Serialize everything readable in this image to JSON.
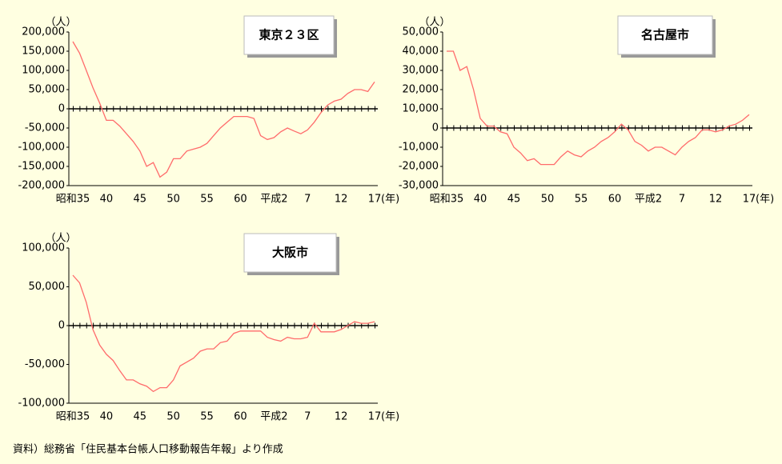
{
  "chart_data": [
    {
      "type": "line",
      "title": "東京２３区",
      "y_label": "（人）",
      "x_label": "(年)",
      "categories": [
        "昭和35",
        null,
        null,
        null,
        null,
        "40",
        null,
        null,
        null,
        null,
        "45",
        null,
        null,
        null,
        null,
        "50",
        null,
        null,
        null,
        null,
        "55",
        null,
        null,
        null,
        null,
        "60",
        null,
        null,
        null,
        null,
        "平成2",
        null,
        null,
        null,
        null,
        "7",
        null,
        null,
        null,
        null,
        "12",
        null,
        null,
        null,
        null,
        "17"
      ],
      "series": [
        {
          "color": "#ff6b6b",
          "values": [
            175000,
            145000,
            100000,
            55000,
            15000,
            -30000,
            -30000,
            -45000,
            -65000,
            -85000,
            -110000,
            -150000,
            -140000,
            -178000,
            -165000,
            -130000,
            -130000,
            -110000,
            -105000,
            -100000,
            -90000,
            -70000,
            -50000,
            -35000,
            -20000,
            -20000,
            -20000,
            -25000,
            -70000,
            -80000,
            -75000,
            -60000,
            -50000,
            -58000,
            -65000,
            -55000,
            -35000,
            -10000,
            10000,
            20000,
            25000,
            40000,
            50000,
            50000,
            45000,
            70000
          ]
        }
      ],
      "ylim": [
        -200000,
        200000
      ],
      "yticks": [
        {
          "value": -200000,
          "label": "-200,000"
        },
        {
          "value": -150000,
          "label": "-150,000"
        },
        {
          "value": -100000,
          "label": "-100,000"
        },
        {
          "value": -50000,
          "label": "-50,000"
        },
        0,
        {
          "value": 50000,
          "label": "50,000"
        },
        {
          "value": 100000,
          "label": "100,000"
        },
        {
          "value": 150000,
          "label": "150,000"
        },
        {
          "value": 200000,
          "label": "200,000"
        }
      ]
    },
    {
      "type": "line",
      "title": "名古屋市",
      "y_label": "（人）",
      "x_label": "(年)",
      "categories": [
        "昭和35",
        null,
        null,
        null,
        null,
        "40",
        null,
        null,
        null,
        null,
        "45",
        null,
        null,
        null,
        null,
        "50",
        null,
        null,
        null,
        null,
        "55",
        null,
        null,
        null,
        null,
        "60",
        null,
        null,
        null,
        null,
        "平成2",
        null,
        null,
        null,
        null,
        "7",
        null,
        null,
        null,
        null,
        "12",
        null,
        null,
        null,
        null,
        "17"
      ],
      "series": [
        {
          "color": "#ff6b6b",
          "values": [
            40000,
            40000,
            30000,
            32000,
            20000,
            5000,
            1000,
            1000,
            -2000,
            -3000,
            -10000,
            -13000,
            -17000,
            -16000,
            -19000,
            -19000,
            -19000,
            -15000,
            -12000,
            -14000,
            -15000,
            -12000,
            -10000,
            -7000,
            -5000,
            -2000,
            2000,
            -1000,
            -7000,
            -9000,
            -12000,
            -10000,
            -10000,
            -12000,
            -14000,
            -10000,
            -7000,
            -5000,
            -1000,
            -1000,
            -2000,
            -1000,
            1000,
            2000,
            4000,
            7000
          ]
        }
      ],
      "ylim": [
        -30000,
        50000
      ],
      "yticks": [
        {
          "value": -30000,
          "label": "-30,000"
        },
        {
          "value": -20000,
          "label": "-20,000"
        },
        {
          "value": -10000,
          "label": "-10,000"
        },
        0,
        {
          "value": 10000,
          "label": "10,000"
        },
        {
          "value": 20000,
          "label": "20,000"
        },
        {
          "value": 30000,
          "label": "30,000"
        },
        {
          "value": 40000,
          "label": "40,000"
        },
        {
          "value": 50000,
          "label": "50,000"
        }
      ]
    },
    {
      "type": "line",
      "title": "大阪市",
      "y_label": "（人）",
      "x_label": "(年)",
      "categories": [
        "昭和35",
        null,
        null,
        null,
        null,
        "40",
        null,
        null,
        null,
        null,
        "45",
        null,
        null,
        null,
        null,
        "50",
        null,
        null,
        null,
        null,
        "55",
        null,
        null,
        null,
        null,
        "60",
        null,
        null,
        null,
        null,
        "平成2",
        null,
        null,
        null,
        null,
        "7",
        null,
        null,
        null,
        null,
        "12",
        null,
        null,
        null,
        null,
        "17"
      ],
      "series": [
        {
          "color": "#ff6b6b",
          "values": [
            65000,
            55000,
            30000,
            -5000,
            -25000,
            -37000,
            -45000,
            -58000,
            -70000,
            -70000,
            -75000,
            -78000,
            -85000,
            -80000,
            -80000,
            -70000,
            -52000,
            -47000,
            -42000,
            -33000,
            -30000,
            -30000,
            -22000,
            -20000,
            -10000,
            -7000,
            -7000,
            -7000,
            -7000,
            -15000,
            -18000,
            -20000,
            -15000,
            -17000,
            -17000,
            -15000,
            3000,
            -8000,
            -8000,
            -8000,
            -5000,
            0,
            5000,
            3000,
            3000,
            5000
          ]
        }
      ],
      "ylim": [
        -100000,
        100000
      ],
      "yticks": [
        {
          "value": -100000,
          "label": "-100,000"
        },
        {
          "value": -50000,
          "label": "-50,000"
        },
        0,
        {
          "value": 50000,
          "label": "50,000"
        },
        {
          "value": 100000,
          "label": "100,000"
        }
      ]
    }
  ],
  "source": "資料）総務省「住民基本台帳人口移動報告年報」より作成"
}
